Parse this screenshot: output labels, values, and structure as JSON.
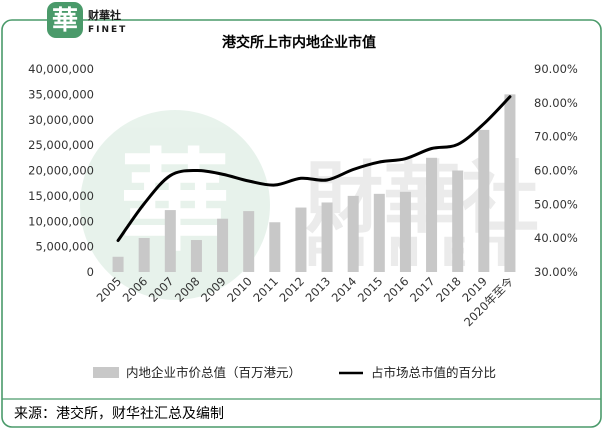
{
  "brand": {
    "logo_glyph": "華",
    "name_cn": "财華社",
    "name_en": "FINET",
    "accent_color": "#4a9a6a"
  },
  "chart_data": {
    "type": "bar",
    "title": "港交所上市内地企业市值",
    "categories": [
      "2005",
      "2006",
      "2007",
      "2008",
      "2009",
      "2010",
      "2011",
      "2012",
      "2013",
      "2014",
      "2015",
      "2016",
      "2017",
      "2018",
      "2019",
      "2020年至今"
    ],
    "y_left": {
      "min": 0,
      "max": 40000000,
      "step": 5000000,
      "tick_labels": [
        "0",
        "5,000,000",
        "10,000,000",
        "15,000,000",
        "20,000,000",
        "25,000,000",
        "30,000,000",
        "35,000,000",
        "40,000,000"
      ]
    },
    "y_right": {
      "min": 30,
      "max": 90,
      "step": 10,
      "tick_labels": [
        "30.00%",
        "40.00%",
        "50.00%",
        "60.00%",
        "70.00%",
        "80.00%",
        "90.00%"
      ]
    },
    "series": [
      {
        "name": "内地企业市价总值（百万港元）",
        "type": "bar",
        "axis": "left",
        "color": "#c8c8c8",
        "values": [
          3000000,
          6700000,
          12200000,
          6300000,
          10500000,
          12000000,
          9800000,
          12700000,
          13700000,
          15000000,
          15400000,
          15800000,
          22500000,
          20000000,
          28000000,
          35000000
        ]
      },
      {
        "name": "占市场总市值的百分比",
        "type": "line",
        "axis": "right",
        "color": "#000000",
        "values": [
          39.3,
          50.2,
          58.5,
          60.0,
          58.9,
          56.9,
          55.7,
          57.7,
          57.2,
          60.3,
          62.5,
          63.5,
          66.5,
          67.7,
          73.8,
          81.8
        ]
      }
    ],
    "legend_position": "bottom",
    "grid": false
  },
  "footer": {
    "source_text": "来源：港交所，财华社汇总及编制"
  },
  "watermark": {
    "text_cn": "財華社",
    "text_en": "FINET"
  }
}
